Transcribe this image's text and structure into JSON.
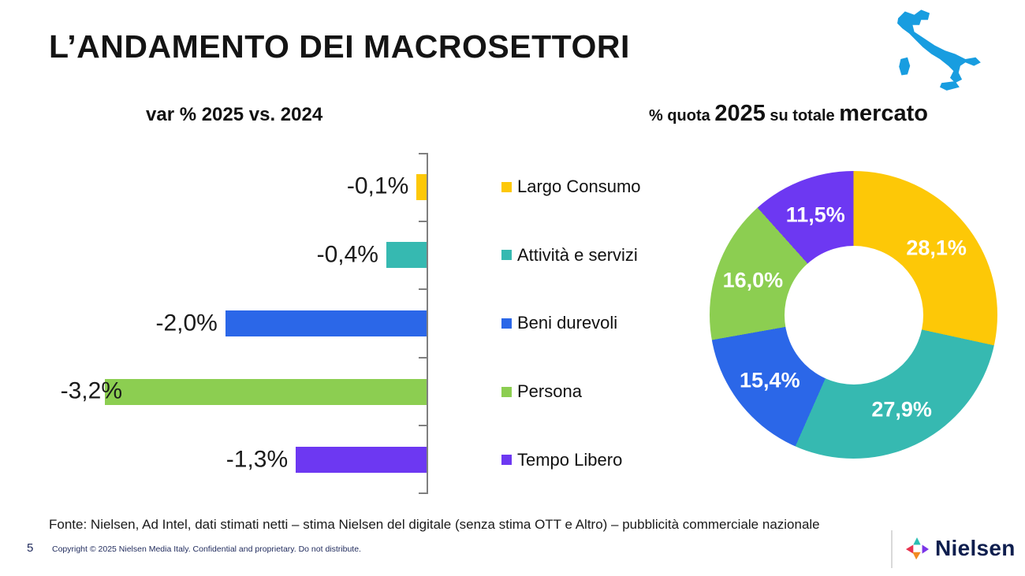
{
  "title": "L’ANDAMENTO DEI MACROSETTORI",
  "slide_number": "5",
  "copyright": "Copyright © 2025 Nielsen Media Italy. Confidential and proprietary. Do not distribute.",
  "footer_source": "Fonte: Nielsen, Ad Intel, dati stimati netti – stima Nielsen del digitale (senza stima OTT e Altro) – pubblicità commerciale nazionale",
  "logo": {
    "text": "Nielsen"
  },
  "icons": {
    "italy_map_color": "#189de0",
    "logo_mark_colors": {
      "left": "#e8334f",
      "up": "#2bbfb3",
      "right": "#7a35e8",
      "down": "#f28a21"
    }
  },
  "colors": {
    "largo_consumo": "#fdc807",
    "attivita_servizi": "#36b9b1",
    "beni_durevoli": "#2b67e8",
    "persona": "#8cce51",
    "tempo_libero": "#6d38f2",
    "axis": "#7f7f7f",
    "navy_text": "#1f2a5c"
  },
  "chart_data": [
    {
      "type": "bar",
      "orientation": "horizontal",
      "title": "var % 2025 vs. 2024",
      "categories": [
        "Largo Consumo",
        "Attività e servizi",
        "Beni durevoli",
        "Persona",
        "Tempo Libero"
      ],
      "values": [
        -0.1,
        -0.4,
        -2.0,
        -3.2,
        -1.3
      ],
      "value_labels": [
        "-0,1%",
        "-0,4%",
        "-2,0%",
        "-3,2%",
        "-1,3%"
      ],
      "colors": [
        "#fdc807",
        "#36b9b1",
        "#2b67e8",
        "#8cce51",
        "#6d38f2"
      ],
      "xlim": [
        -3.77,
        0
      ],
      "axis_side": "right",
      "grid": false
    },
    {
      "type": "pie",
      "subtype": "donut",
      "title": "% quota 2025 su totale mercato",
      "title_segments": [
        {
          "text": "% quota ",
          "size": "small"
        },
        {
          "text": "2025",
          "size": "large"
        },
        {
          "text": " su totale ",
          "size": "small"
        },
        {
          "text": "mercato",
          "size": "large"
        }
      ],
      "categories": [
        "Largo Consumo",
        "Attività e servizi",
        "Beni durevoli",
        "Persona",
        "Tempo Libero"
      ],
      "values": [
        28.1,
        27.9,
        15.4,
        16.0,
        11.5
      ],
      "value_labels": [
        "28,1%",
        "27,9%",
        "15,4%",
        "16,0%",
        "11,5%"
      ],
      "colors": [
        "#fdc807",
        "#36b9b1",
        "#2b67e8",
        "#8cce51",
        "#6d38f2"
      ],
      "start_angle_deg": 0,
      "direction": "clockwise",
      "legend_position": "none"
    }
  ]
}
